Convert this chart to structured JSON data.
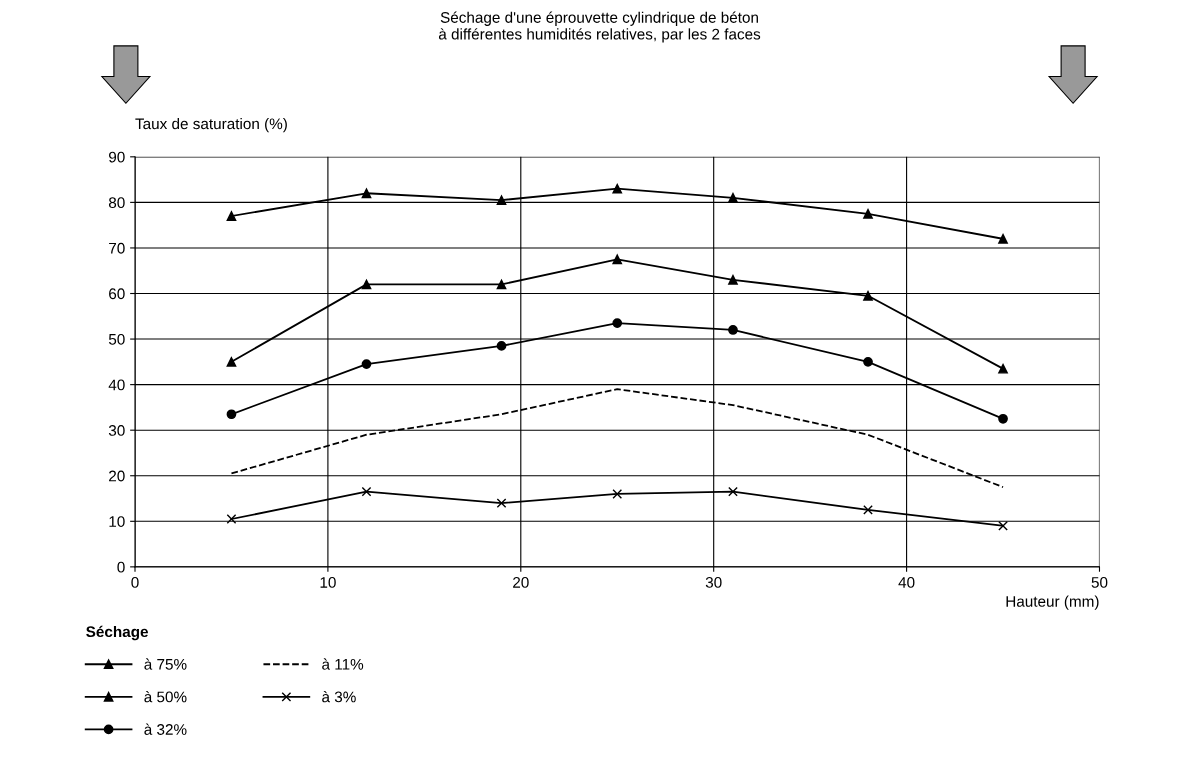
{
  "chart_data": {
    "type": "line",
    "title": "Séchage d'une éprouvette cylindrique de béton\nà différentes humidités relatives, par les 2 faces",
    "xlabel": "Hauteur (mm)",
    "ylabel": "Taux de saturation (%)",
    "legend_title": "Séchage",
    "x": [
      5,
      12,
      19,
      25,
      31,
      38,
      45
    ],
    "series": [
      {
        "name": "à 75%",
        "color": "#000000",
        "marker": "triangle",
        "line_style": "solid",
        "values": [
          77,
          82,
          80.5,
          83,
          81,
          77.5,
          72
        ]
      },
      {
        "name": "à 50%",
        "color": "#000000",
        "marker": "triangle",
        "line_style": "solid",
        "values": [
          45,
          62,
          62,
          67.5,
          63,
          59.5,
          43.5
        ]
      },
      {
        "name": "à 32%",
        "color": "#000000",
        "marker": "circle",
        "line_style": "solid",
        "values": [
          33.5,
          44.5,
          48.5,
          53.5,
          52,
          45,
          32.5
        ]
      },
      {
        "name": "à 11%",
        "color": "#000000",
        "marker": "none",
        "line_style": "dashed",
        "values": [
          20.5,
          29,
          33.5,
          39,
          35.5,
          29,
          17.5
        ]
      },
      {
        "name": "à 3%",
        "color": "#000000",
        "marker": "cross",
        "line_style": "solid",
        "values": [
          10.5,
          16.5,
          14,
          16,
          16.5,
          12.5,
          9
        ]
      }
    ],
    "xlim": [
      0,
      50
    ],
    "xticks": [
      0,
      10,
      20,
      30,
      40,
      50
    ],
    "ylim": [
      0,
      90
    ],
    "yticks": [
      0,
      10,
      20,
      30,
      40,
      50,
      60,
      70,
      80,
      90
    ],
    "grid": true,
    "legend": "bottom left"
  }
}
